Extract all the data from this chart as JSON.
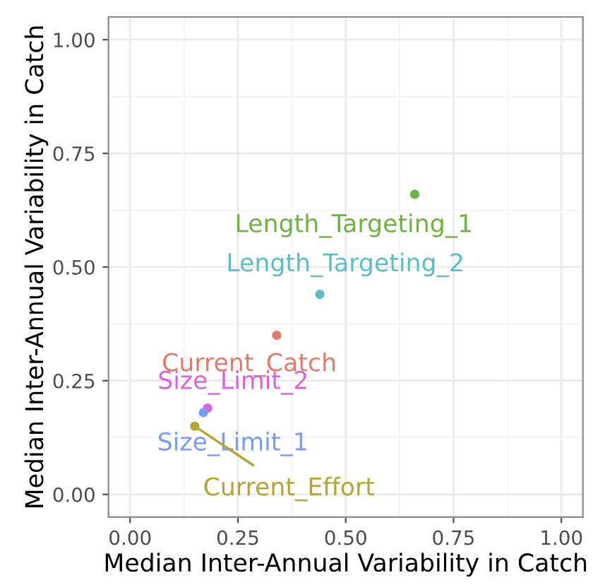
{
  "chart_data": {
    "type": "scatter",
    "xlabel": "Median Inter-Annual Variability in Catch",
    "ylabel": "Median Inter-Annual Variability in Catch",
    "series": [
      {
        "name": "Length_Targeting_1",
        "color": "#6db33f",
        "x": [
          0.66
        ],
        "values": [
          0.66
        ]
      },
      {
        "name": "Length_Targeting_2",
        "color": "#5fbcc4",
        "x": [
          0.44
        ],
        "values": [
          0.44
        ]
      },
      {
        "name": "Current_Catch",
        "color": "#e07b6e",
        "x": [
          0.34
        ],
        "values": [
          0.35
        ]
      },
      {
        "name": "Size_Limit_2",
        "color": "#d966d9",
        "x": [
          0.18
        ],
        "values": [
          0.19
        ]
      },
      {
        "name": "Size_Limit_1",
        "color": "#7b9cf5",
        "x": [
          0.17
        ],
        "values": [
          0.18
        ]
      },
      {
        "name": "Current_Effort",
        "color": "#b5a43a",
        "x": [
          0.15
        ],
        "values": [
          0.15
        ]
      }
    ],
    "xlim": [
      -0.05,
      1.05
    ],
    "ylim": [
      -0.05,
      1.05
    ],
    "xticks": [
      {
        "value": 0,
        "label": "0.00"
      },
      {
        "value": 0.25,
        "label": "0.25"
      },
      {
        "value": 0.5,
        "label": "0.50"
      },
      {
        "value": 0.75,
        "label": "0.75"
      },
      {
        "value": 1,
        "label": "1.00"
      }
    ],
    "yticks": [
      {
        "value": 0,
        "label": "0.00"
      },
      {
        "value": 0.25,
        "label": "0.25"
      },
      {
        "value": 0.5,
        "label": "0.50"
      },
      {
        "value": 0.75,
        "label": "0.75"
      },
      {
        "value": 1,
        "label": "1.00"
      }
    ],
    "grid": true,
    "marker": "circle",
    "legend": false
  }
}
